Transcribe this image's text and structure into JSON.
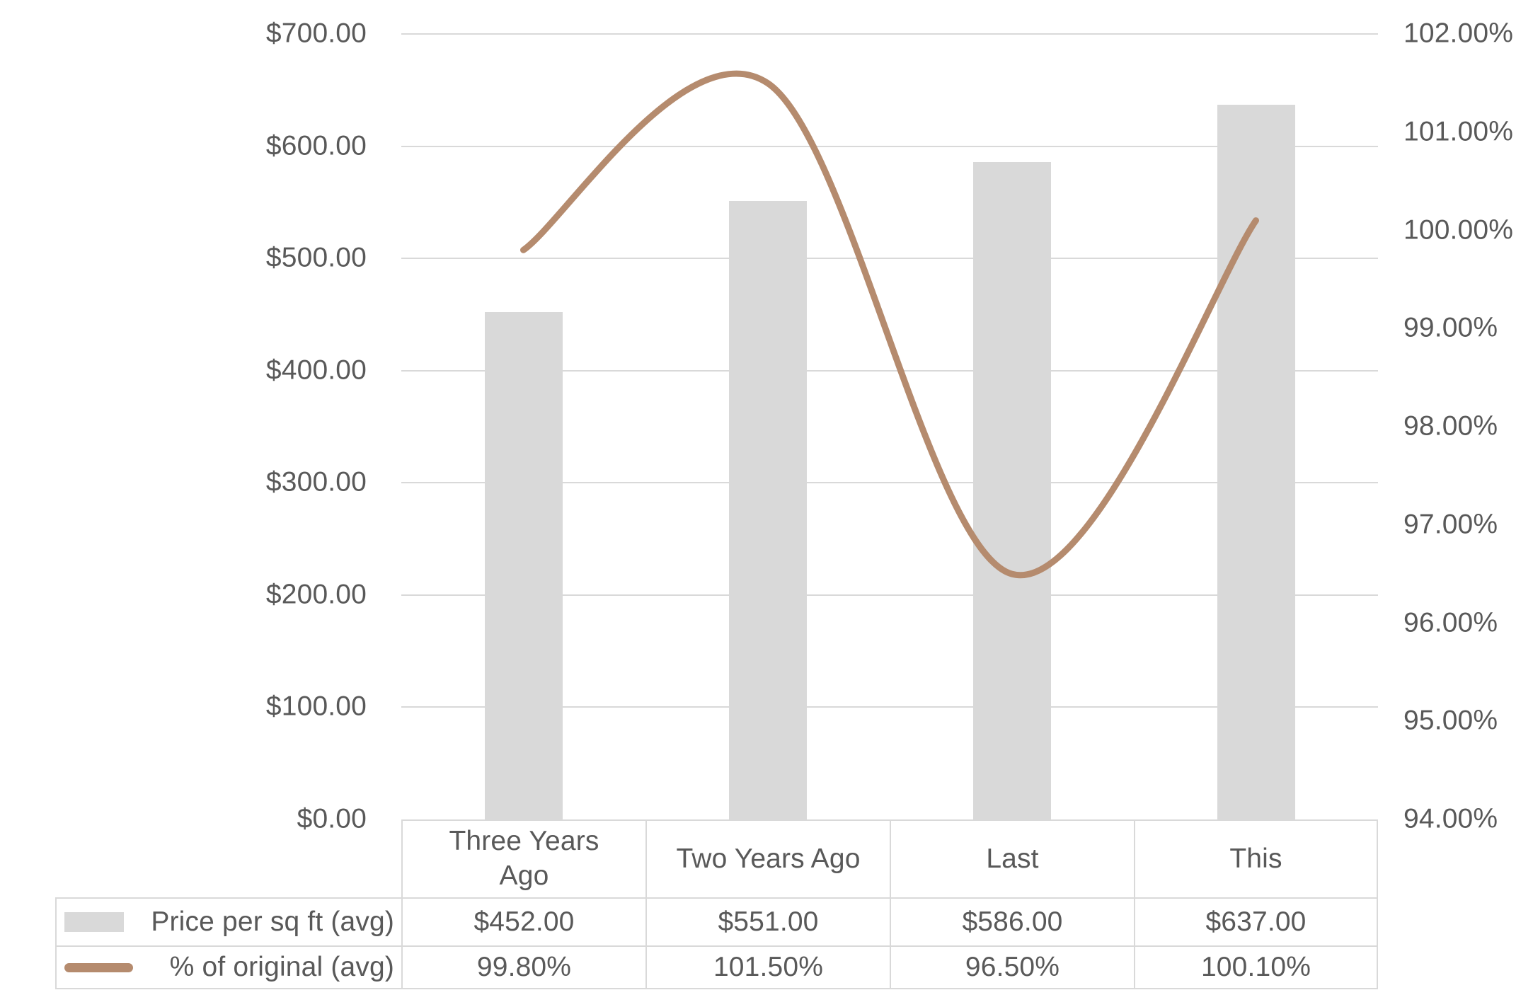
{
  "chart_data": {
    "type": "combo-bar-line",
    "categories": [
      "Three Years Ago",
      "Two Years Ago",
      "Last",
      "This"
    ],
    "categories_display": [
      "Three Years\nAgo",
      "Two Years Ago",
      "Last",
      "This"
    ],
    "series": [
      {
        "name": "Price per sq ft (avg)",
        "chart": "bar",
        "axis": "left",
        "values": [
          452,
          551,
          586,
          637
        ],
        "values_display": [
          "$452.00",
          "$551.00",
          "$586.00",
          "$637.00"
        ],
        "color": "#d9d9d9"
      },
      {
        "name": "% of original (avg)",
        "chart": "line",
        "axis": "right",
        "values": [
          99.8,
          101.5,
          96.5,
          100.1
        ],
        "values_display": [
          "99.80%",
          "101.50%",
          "96.50%",
          "100.10%"
        ],
        "color": "#b58b6e"
      }
    ],
    "left_axis": {
      "min": 0,
      "max": 700,
      "ticks": [
        "$700.00",
        "$600.00",
        "$500.00",
        "$400.00",
        "$300.00",
        "$200.00",
        "$100.00",
        "$0.00"
      ]
    },
    "right_axis": {
      "min": 94,
      "max": 102,
      "ticks": [
        "102.00%",
        "101.00%",
        "100.00%",
        "99.00%",
        "98.00%",
        "97.00%",
        "96.00%",
        "95.00%",
        "94.00%"
      ]
    },
    "grid": true,
    "legend_position": "table-left",
    "title": "",
    "xlabel": "",
    "ylabel": ""
  },
  "colors": {
    "text": "#595959",
    "gridline": "#d9d9d9",
    "table_border": "#d9d9d9",
    "bar_fill": "#d9d9d9",
    "line_stroke": "#b58b6e",
    "background": "#ffffff"
  }
}
